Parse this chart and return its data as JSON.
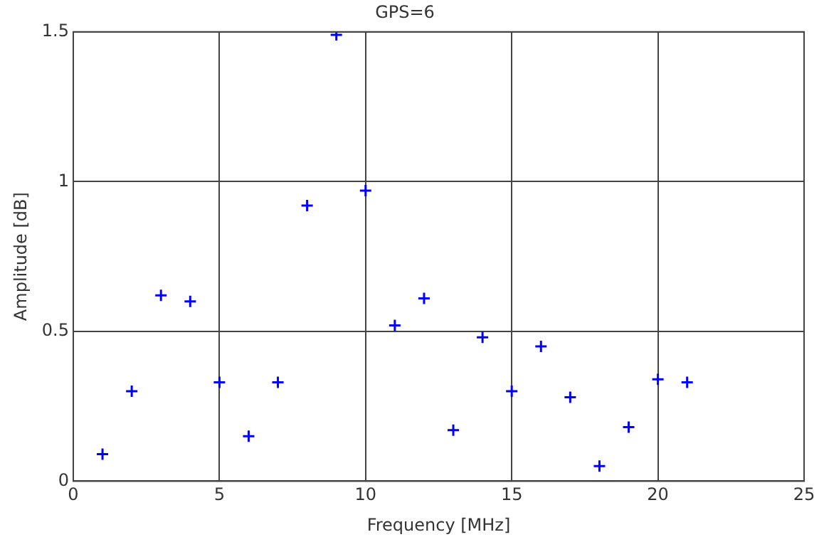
{
  "chart_data": {
    "type": "scatter",
    "title": "GPS=6",
    "xlabel": "Frequency [MHz]",
    "ylabel": "Amplitude [dB]",
    "x": [
      1,
      2,
      3,
      4,
      5,
      6,
      7,
      8,
      9,
      10,
      11,
      12,
      13,
      14,
      15,
      16,
      17,
      18,
      19,
      20,
      21
    ],
    "series": [
      {
        "color": "#0000ff",
        "values": [
          0.09,
          0.3,
          0.62,
          0.6,
          0.33,
          0.15,
          0.33,
          0.92,
          1.49,
          0.97,
          0.52,
          0.61,
          0.17,
          0.48,
          0.3,
          0.45,
          0.28,
          0.05,
          0.18,
          0.34,
          0.33
        ]
      }
    ],
    "xlim": [
      0,
      25
    ],
    "xticks": [
      0,
      5,
      10,
      15,
      20,
      25
    ],
    "ylim": [
      0,
      1.5
    ],
    "yticks": [
      0,
      0.5,
      1,
      1.5
    ],
    "grid": true,
    "legend": false,
    "marker": "cross"
  }
}
